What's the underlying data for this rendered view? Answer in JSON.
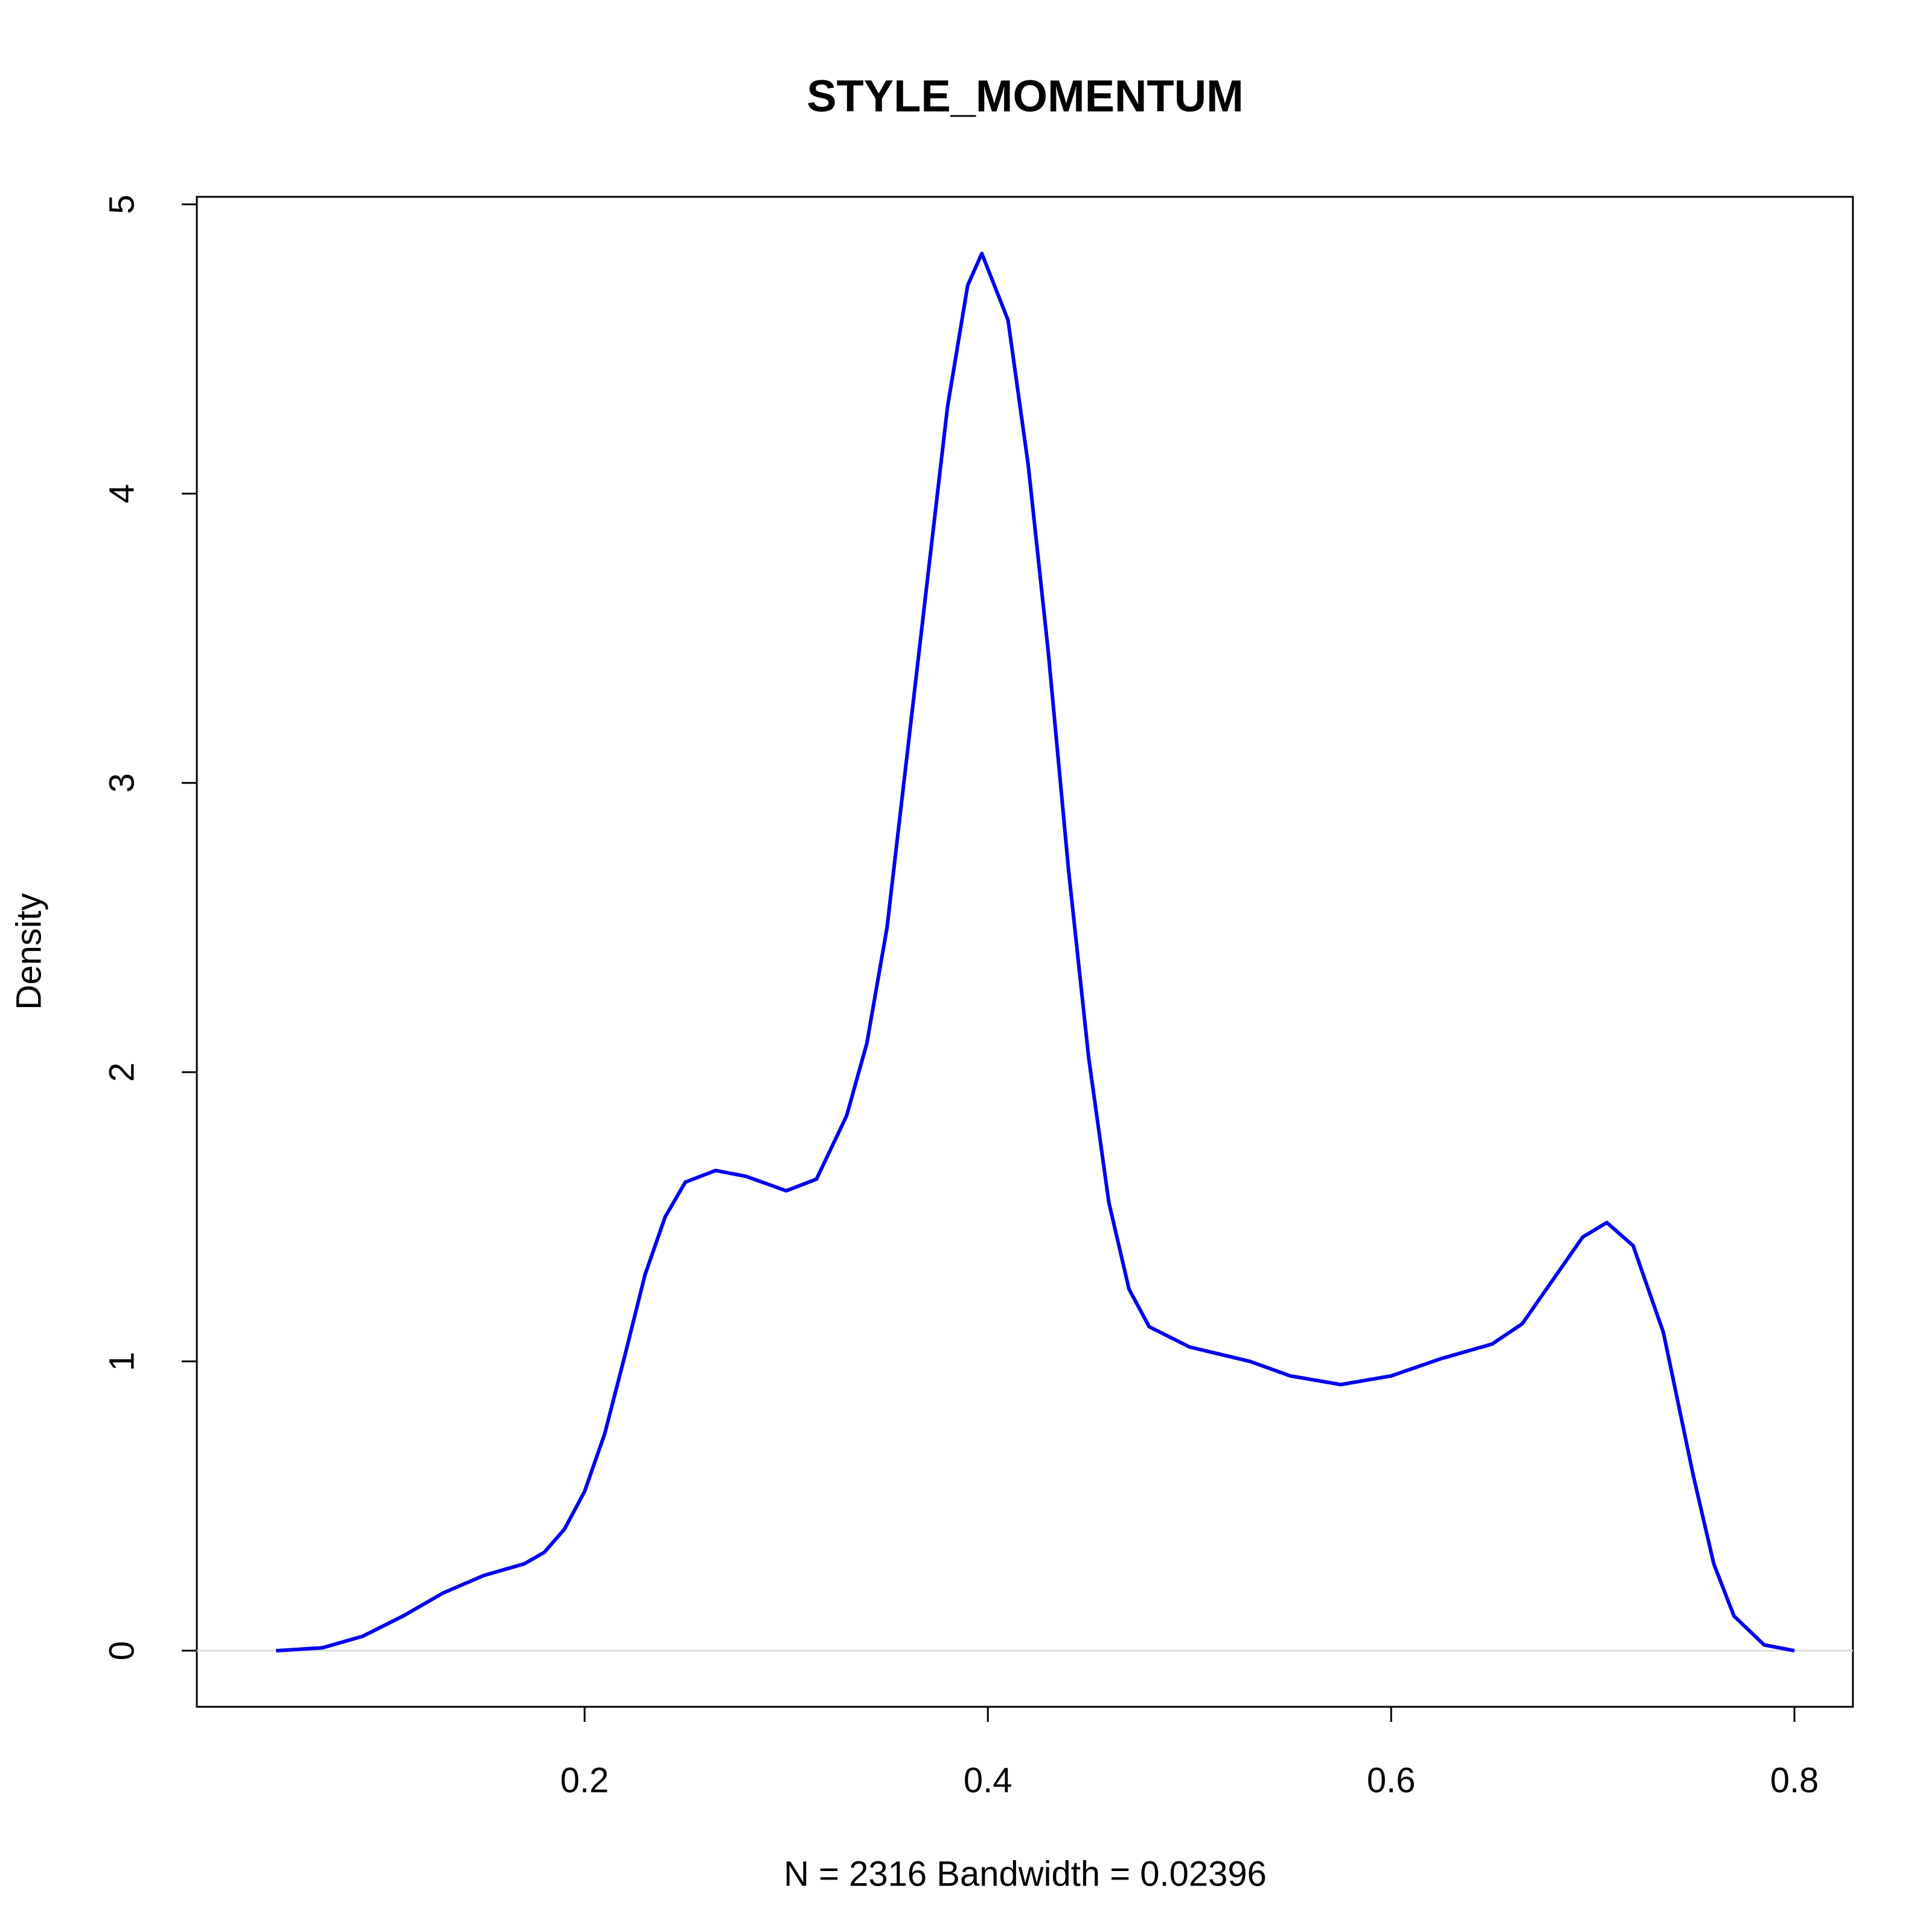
{
  "chart_data": {
    "type": "line",
    "title": "STYLE_MOMENTUM",
    "xlabel": "N = 2316   Bandwidth = 0.02396",
    "ylabel": "Density",
    "x": [
      0.047,
      0.07,
      0.09,
      0.11,
      0.13,
      0.15,
      0.17,
      0.18,
      0.19,
      0.2,
      0.21,
      0.22,
      0.23,
      0.24,
      0.25,
      0.265,
      0.28,
      0.3,
      0.315,
      0.33,
      0.34,
      0.35,
      0.36,
      0.37,
      0.38,
      0.39,
      0.397,
      0.41,
      0.42,
      0.43,
      0.44,
      0.45,
      0.46,
      0.47,
      0.48,
      0.5,
      0.53,
      0.55,
      0.575,
      0.6,
      0.625,
      0.65,
      0.665,
      0.68,
      0.695,
      0.707,
      0.72,
      0.735,
      0.75,
      0.76,
      0.77,
      0.785,
      0.8
    ],
    "series": [
      {
        "color": "#0000ee",
        "values": [
          0,
          0.01,
          0.05,
          0.12,
          0.2,
          0.26,
          0.3,
          0.34,
          0.42,
          0.55,
          0.75,
          1.02,
          1.3,
          1.5,
          1.62,
          1.66,
          1.64,
          1.59,
          1.63,
          1.85,
          2.1,
          2.5,
          3.1,
          3.7,
          4.3,
          4.72,
          4.83,
          4.6,
          4.1,
          3.45,
          2.7,
          2.05,
          1.55,
          1.25,
          1.12,
          1.05,
          1.0,
          0.95,
          0.92,
          0.95,
          1.01,
          1.06,
          1.13,
          1.28,
          1.43,
          1.48,
          1.4,
          1.1,
          0.6,
          0.3,
          0.12,
          0.02,
          0
        ]
      }
    ],
    "xlim": [
      0.0077,
      0.829
    ],
    "ylim": [
      -0.194,
      5.026
    ],
    "xticks": [
      0.2,
      0.4,
      0.6,
      0.8
    ],
    "yticks": [
      0,
      1,
      2,
      3,
      4,
      5
    ],
    "hline": 0,
    "hline_color": "#dddddd"
  }
}
